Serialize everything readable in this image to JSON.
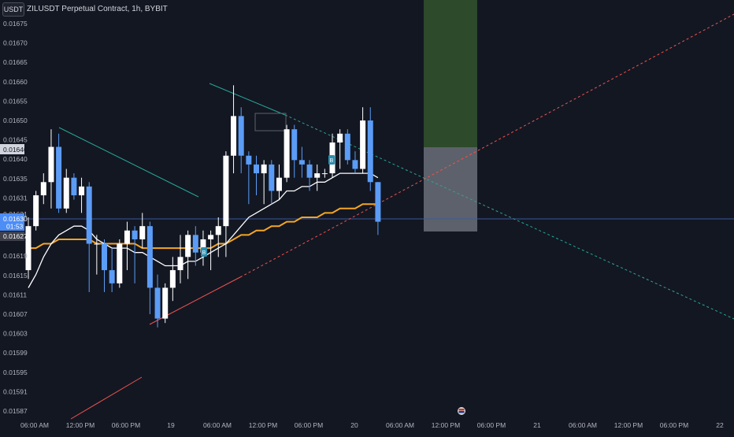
{
  "header": {
    "currency": "USDT",
    "symbol": "ZILUSDT Perpetual Contract, 1h, BYBIT"
  },
  "chart_data": {
    "type": "candlestick",
    "y_ticks": [
      "0.01675",
      "0.01670",
      "0.01665",
      "0.01660",
      "0.01655",
      "0.01650",
      "0.01645",
      "0.01640",
      "0.01635",
      "0.01631",
      "0.01627",
      "0.01623",
      "0.01619",
      "0.01615",
      "0.01611",
      "0.01607",
      "0.01603",
      "0.01599",
      "0.01595",
      "0.01591",
      "0.01587"
    ],
    "x_ticks": [
      "06:00 AM",
      "12:00 PM",
      "06:00 PM",
      "19",
      "06:00 AM",
      "12:00 PM",
      "06:00 PM",
      "20",
      "06:00 AM",
      "12:00 PM",
      "06:00 PM",
      "21",
      "06:00 AM",
      "12:00 PM",
      "06:00 PM",
      "22"
    ],
    "ylim": [
      0.01585,
      0.01678
    ],
    "candles": [
      [
        0.01619,
        0.01629,
        0.01617,
        0.01631
      ],
      [
        0.01629,
        0.01636,
        0.01628,
        0.01637
      ],
      [
        0.01636,
        0.01639,
        0.01634,
        0.01641
      ],
      [
        0.01639,
        0.01647,
        0.01633,
        0.01651
      ],
      [
        0.01647,
        0.01633,
        0.01632,
        0.0165
      ],
      [
        0.01633,
        0.0164,
        0.01632,
        0.01642
      ],
      [
        0.0164,
        0.01636,
        0.01635,
        0.01641
      ],
      [
        0.01636,
        0.01638,
        0.01632,
        0.0164
      ],
      [
        0.01638,
        0.01625,
        0.01614,
        0.01639
      ],
      [
        0.01625,
        0.01625,
        0.01618,
        0.01627
      ],
      [
        0.01625,
        0.01619,
        0.01614,
        0.01626
      ],
      [
        0.01619,
        0.01616,
        0.01614,
        0.01624
      ],
      [
        0.01616,
        0.01625,
        0.01615,
        0.01626
      ],
      [
        0.01625,
        0.01628,
        0.01619,
        0.0163
      ],
      [
        0.01628,
        0.01626,
        0.01616,
        0.01629
      ],
      [
        0.01626,
        0.01629,
        0.01624,
        0.01632
      ],
      [
        0.01629,
        0.01615,
        0.01609,
        0.0163
      ],
      [
        0.01615,
        0.01608,
        0.01606,
        0.01618
      ],
      [
        0.01608,
        0.01615,
        0.01607,
        0.01616
      ],
      [
        0.01615,
        0.01619,
        0.01612,
        0.01622
      ],
      [
        0.01619,
        0.01622,
        0.01616,
        0.01627
      ],
      [
        0.01622,
        0.01627,
        0.01617,
        0.01628
      ],
      [
        0.01627,
        0.01623,
        0.0162,
        0.01629
      ],
      [
        0.01623,
        0.01626,
        0.0162,
        0.01628
      ],
      [
        0.01626,
        0.01627,
        0.01619,
        0.01628
      ],
      [
        0.01627,
        0.01629,
        0.01622,
        0.01631
      ],
      [
        0.01629,
        0.01645,
        0.01622,
        0.01646
      ],
      [
        0.01645,
        0.01654,
        0.01641,
        0.01661
      ],
      [
        0.01654,
        0.01645,
        0.01641,
        0.01656
      ],
      [
        0.01645,
        0.01643,
        0.01634,
        0.01646
      ],
      [
        0.01643,
        0.01641,
        0.01636,
        0.01645
      ],
      [
        0.01641,
        0.01643,
        0.01634,
        0.01644
      ],
      [
        0.01643,
        0.01637,
        0.01634,
        0.01644
      ],
      [
        0.01637,
        0.0164,
        0.01635,
        0.01643
      ],
      [
        0.0164,
        0.01651,
        0.01639,
        0.01652
      ],
      [
        0.01651,
        0.01644,
        0.0164,
        0.01652
      ],
      [
        0.01644,
        0.01643,
        0.0164,
        0.01647
      ],
      [
        0.01643,
        0.0164,
        0.01637,
        0.01644
      ],
      [
        0.0164,
        0.01641,
        0.01637,
        0.01643
      ],
      [
        0.01641,
        0.01641,
        0.0164,
        0.01642
      ],
      [
        0.01641,
        0.01648,
        0.0164,
        0.0165
      ],
      [
        0.01648,
        0.0165,
        0.01642,
        0.01651
      ],
      [
        0.0165,
        0.01644,
        0.01643,
        0.01651
      ],
      [
        0.01644,
        0.01642,
        0.01641,
        0.01646
      ],
      [
        0.01642,
        0.01653,
        0.01641,
        0.01656
      ],
      [
        0.01653,
        0.01639,
        0.01637,
        0.01656
      ],
      [
        0.01639,
        0.0163,
        0.01627,
        0.01639
      ]
    ],
    "ma_fast": [
      0.01615,
      0.01618,
      0.01622,
      0.01625,
      0.01627,
      0.01628,
      0.01629,
      0.01629,
      0.01628,
      0.01626,
      0.01625,
      0.01624,
      0.01624,
      0.01624,
      0.01623,
      0.01623,
      0.01622,
      0.01621,
      0.0162,
      0.0162,
      0.0162,
      0.01621,
      0.01621,
      0.01622,
      0.01623,
      0.01624,
      0.01625,
      0.01627,
      0.01629,
      0.01631,
      0.01632,
      0.01633,
      0.01634,
      0.01635,
      0.01637,
      0.01637,
      0.01638,
      0.01638,
      0.01639,
      0.01639,
      0.0164,
      0.01641,
      0.01641,
      0.01641,
      0.01641,
      0.01641,
      0.0164
    ],
    "ma_slow": [
      0.01624,
      0.01624,
      0.01625,
      0.01625,
      0.01626,
      0.01626,
      0.01626,
      0.01626,
      0.01626,
      0.01625,
      0.01625,
      0.01625,
      0.01625,
      0.01625,
      0.01625,
      0.01624,
      0.01624,
      0.01624,
      0.01624,
      0.01624,
      0.01624,
      0.01624,
      0.01624,
      0.01624,
      0.01624,
      0.01625,
      0.01625,
      0.01626,
      0.01627,
      0.01627,
      0.01628,
      0.01628,
      0.01629,
      0.01629,
      0.0163,
      0.0163,
      0.01631,
      0.01631,
      0.01631,
      0.01632,
      0.01632,
      0.01633,
      0.01633,
      0.01633,
      0.01634,
      0.01634,
      0.01634
    ],
    "last_price": "0.01630",
    "countdown": "01:53",
    "crosshair_price": "0.01646",
    "secondary_price": "0.01627",
    "ma_label_price": "0.01631",
    "grid": false
  },
  "colors": {
    "background": "#131722",
    "up": "#ffffff",
    "down": "#5b9cf6",
    "ma_fast": "#ffffff",
    "ma_slow": "#f5a623",
    "trend_teal": "#26a69a",
    "trend_red": "#ef5350",
    "target_zone": "#2d4a2b",
    "stop_zone": "#6b6e78",
    "price_line": "#3a5a9a"
  },
  "markers": [
    "B",
    "B"
  ]
}
